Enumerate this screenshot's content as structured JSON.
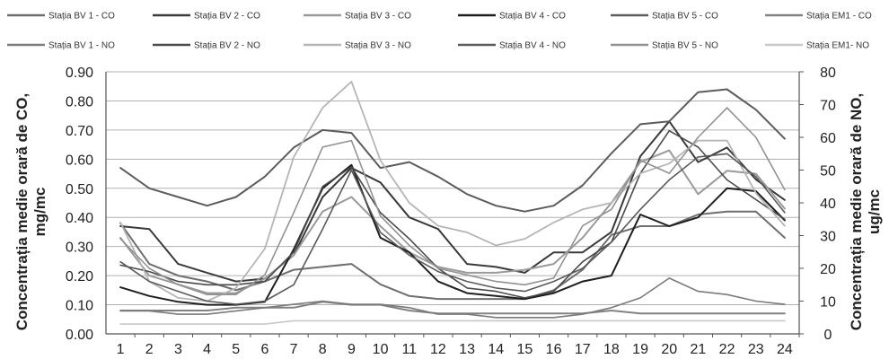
{
  "chart_data": {
    "type": "line",
    "title": "",
    "xlabel": "",
    "x": [
      1,
      2,
      3,
      4,
      5,
      6,
      7,
      8,
      9,
      10,
      11,
      12,
      13,
      14,
      15,
      16,
      17,
      18,
      19,
      20,
      21,
      22,
      23,
      24
    ],
    "y_left": {
      "label_line1": "Concentrația medie orară de CO,",
      "label_line2": "mg/mc",
      "lim": [
        0,
        0.9
      ],
      "ticks": [
        "0.00",
        "0.10",
        "0.20",
        "0.30",
        "0.40",
        "0.50",
        "0.60",
        "0.70",
        "0.80",
        "0.90"
      ]
    },
    "y_right": {
      "label_line1": "Concentrația medie orară de NO,",
      "label_line2": "ug/mc",
      "lim": [
        0,
        80
      ],
      "ticks": [
        "0",
        "10",
        "20",
        "30",
        "40",
        "50",
        "60",
        "70",
        "80"
      ]
    },
    "grid": true,
    "legend_position": "top",
    "series": [
      {
        "name": "Stația BV 1 - CO",
        "axis": "left",
        "color": "#6e6e6e",
        "width": 2,
        "values": [
          0.38,
          0.24,
          0.2,
          0.18,
          0.15,
          0.18,
          0.22,
          0.23,
          0.24,
          0.17,
          0.13,
          0.12,
          0.12,
          0.12,
          0.12,
          0.15,
          0.22,
          0.34,
          0.37,
          0.37,
          0.41,
          0.42,
          0.42,
          0.33
        ]
      },
      {
        "name": "Stația BV 2 - CO",
        "axis": "left",
        "color": "#3a3a3a",
        "width": 2,
        "values": [
          0.37,
          0.36,
          0.24,
          0.21,
          0.18,
          0.19,
          0.27,
          0.47,
          0.57,
          0.52,
          0.4,
          0.36,
          0.24,
          0.23,
          0.21,
          0.28,
          0.28,
          0.35,
          0.61,
          0.73,
          0.59,
          0.64,
          0.53,
          0.46
        ]
      },
      {
        "name": "Stația BV 3 - CO",
        "axis": "left",
        "color": "#9a9a9a",
        "width": 2,
        "values": [
          0.33,
          0.2,
          0.17,
          0.14,
          0.14,
          0.19,
          0.27,
          0.42,
          0.47,
          0.37,
          0.28,
          0.23,
          0.21,
          0.21,
          0.22,
          0.24,
          0.33,
          0.45,
          0.59,
          0.63,
          0.48,
          0.56,
          0.55,
          0.43
        ]
      },
      {
        "name": "Stația BV 4 - CO",
        "axis": "left",
        "color": "#1e1e1e",
        "width": 2,
        "values": [
          0.16,
          0.13,
          0.11,
          0.1,
          0.1,
          0.11,
          0.29,
          0.5,
          0.58,
          0.33,
          0.28,
          0.18,
          0.14,
          0.13,
          0.12,
          0.14,
          0.18,
          0.2,
          0.41,
          0.37,
          0.4,
          0.5,
          0.49,
          0.39
        ]
      },
      {
        "name": "Stația BV 5 - CO",
        "axis": "left",
        "color": "#5c5c5c",
        "width": 2,
        "values": [
          0.57,
          0.5,
          0.47,
          0.44,
          0.47,
          0.54,
          0.64,
          0.7,
          0.69,
          0.57,
          0.59,
          0.54,
          0.48,
          0.44,
          0.42,
          0.44,
          0.51,
          0.62,
          0.72,
          0.73,
          0.83,
          0.84,
          0.77,
          0.67
        ]
      },
      {
        "name": "Stația EM1 - CO",
        "axis": "left",
        "color": "#828282",
        "width": 2,
        "values": [
          0.08,
          0.08,
          0.08,
          0.08,
          0.09,
          0.09,
          0.09,
          0.11,
          0.1,
          0.1,
          0.08,
          0.07,
          0.07,
          0.07,
          0.07,
          0.07,
          0.07,
          0.08,
          0.07,
          0.07,
          0.07,
          0.07,
          0.07,
          0.07
        ]
      },
      {
        "name": "Stația BV 1 - NO",
        "axis": "right",
        "color": "#7a7a7a",
        "width": 1.6,
        "values": [
          7,
          7,
          6,
          6,
          7,
          8,
          9,
          10,
          9,
          9,
          8,
          6,
          6,
          5,
          5,
          5,
          6,
          8,
          11,
          17,
          13,
          12,
          10,
          9
        ]
      },
      {
        "name": "Stația BV 2 - NO",
        "axis": "right",
        "color": "#4a4a4a",
        "width": 1.6,
        "values": [
          21,
          19,
          16,
          15,
          15,
          16,
          25,
          45,
          51,
          37,
          29,
          20,
          14,
          13,
          11,
          13,
          22,
          28,
          49,
          62,
          57,
          47,
          41,
          35
        ]
      },
      {
        "name": "Stația BV 3 - NO",
        "axis": "right",
        "color": "#b5b5b5",
        "width": 1.8,
        "values": [
          34,
          16,
          11,
          10,
          14,
          26,
          54,
          69,
          77,
          53,
          40,
          33,
          31,
          27,
          29,
          34,
          38,
          40,
          49,
          52,
          59,
          59,
          43,
          33
        ]
      },
      {
        "name": "Stația BV 4 - NO",
        "axis": "right",
        "color": "#5a5a5a",
        "width": 1.6,
        "values": [
          22,
          16,
          13,
          10,
          9,
          10,
          15,
          32,
          50,
          31,
          24,
          19,
          16,
          14,
          13,
          16,
          20,
          28,
          38,
          47,
          54,
          55,
          48,
          37
        ]
      },
      {
        "name": "Stația BV 5 - NO",
        "axis": "right",
        "color": "#929292",
        "width": 1.6,
        "values": [
          29,
          20,
          15,
          12,
          12,
          18,
          37,
          57,
          59,
          36,
          27,
          20,
          18,
          16,
          15,
          17,
          33,
          38,
          53,
          49,
          60,
          69,
          60,
          44
        ]
      },
      {
        "name": "Stația EM1- NO",
        "axis": "right",
        "color": "#c8c8c8",
        "width": 1.6,
        "values": [
          3,
          3,
          3,
          3,
          3,
          3,
          4,
          4,
          4,
          4,
          4,
          4,
          4,
          4,
          4,
          4,
          4,
          4,
          4,
          4,
          4,
          4,
          4,
          4
        ]
      }
    ]
  }
}
